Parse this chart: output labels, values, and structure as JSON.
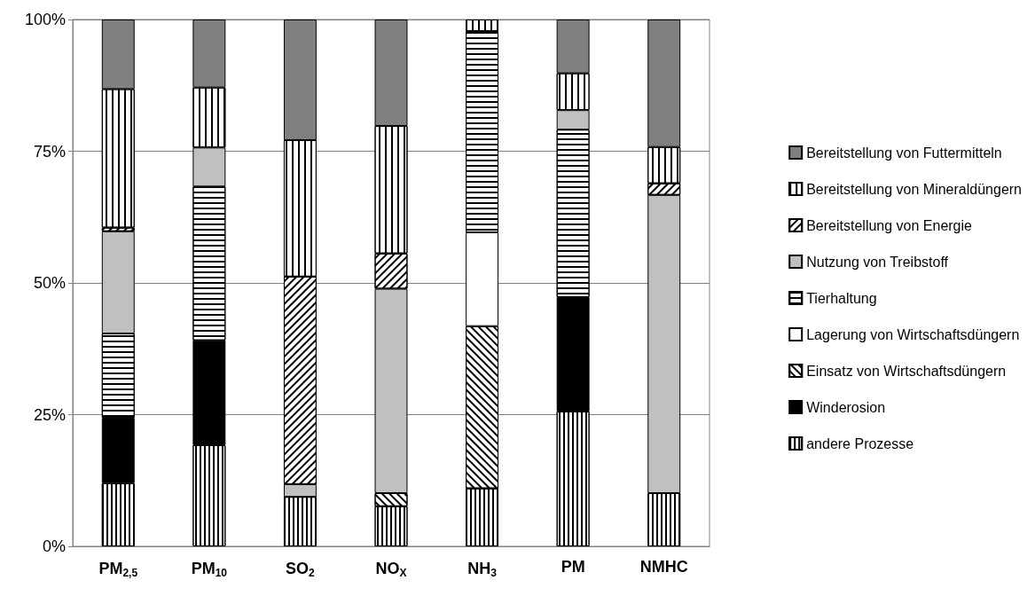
{
  "chart_data": {
    "type": "bar",
    "stacked": true,
    "categories": [
      "PM$_{2,5}$",
      "PM$_{10}$",
      "SO$_{2}$",
      "NO$_{X}$",
      "NH$_{3}$",
      "PM",
      "NMHC"
    ],
    "series": [
      {
        "name": "andere Prozesse",
        "color": "#ffffff",
        "values": [
          12,
          19.2,
          9.4,
          7.6,
          11,
          25.6,
          10.1
        ]
      },
      {
        "name": "Winderosion",
        "color": "#000000",
        "values": [
          12.4,
          19.9,
          0,
          0,
          0,
          21.7,
          0
        ]
      },
      {
        "name": "Einsatz von Wirtschaftsdüngern",
        "color": "#ffffff",
        "values": [
          0,
          0,
          0,
          2.5,
          30.8,
          0,
          0
        ]
      },
      {
        "name": "Lagerung von Wirtschaftsdüngern",
        "color": "#ffffff",
        "values": [
          0,
          0,
          0,
          0,
          17.8,
          0,
          0
        ]
      },
      {
        "name": "Tierhaltung",
        "color": "#ffffff",
        "values": [
          16,
          29.2,
          0,
          0,
          38.2,
          31.8,
          0
        ]
      },
      {
        "name": "Nutzung von Treibstoff",
        "color": "#c0c0c0",
        "values": [
          19.4,
          7.4,
          2.4,
          38.8,
          0,
          3.7,
          56.6
        ]
      },
      {
        "name": "Bereitstellung von Energie",
        "color": "#ffffff",
        "values": [
          0.7,
          0,
          39.4,
          6.7,
          0,
          0,
          2.2
        ]
      },
      {
        "name": "Bereitstellung von Mineraldüngern",
        "color": "#ffffff",
        "values": [
          26.3,
          11.4,
          25.9,
          24.2,
          2.2,
          7,
          6.9
        ]
      },
      {
        "name": "Bereitstellung von Futtermitteln",
        "color": "#808080",
        "values": [
          13.2,
          12.9,
          22.9,
          20.2,
          0,
          10.2,
          24.2
        ]
      }
    ],
    "ylim": [
      0,
      100
    ],
    "yticks": [
      {
        "value": 0,
        "label": "0%"
      },
      {
        "value": 25,
        "label": "25%"
      },
      {
        "value": 50,
        "label": "50%"
      },
      {
        "value": 75,
        "label": "75%"
      },
      {
        "value": 100,
        "label": "100%"
      }
    ],
    "grid": "y",
    "legend": "right"
  }
}
